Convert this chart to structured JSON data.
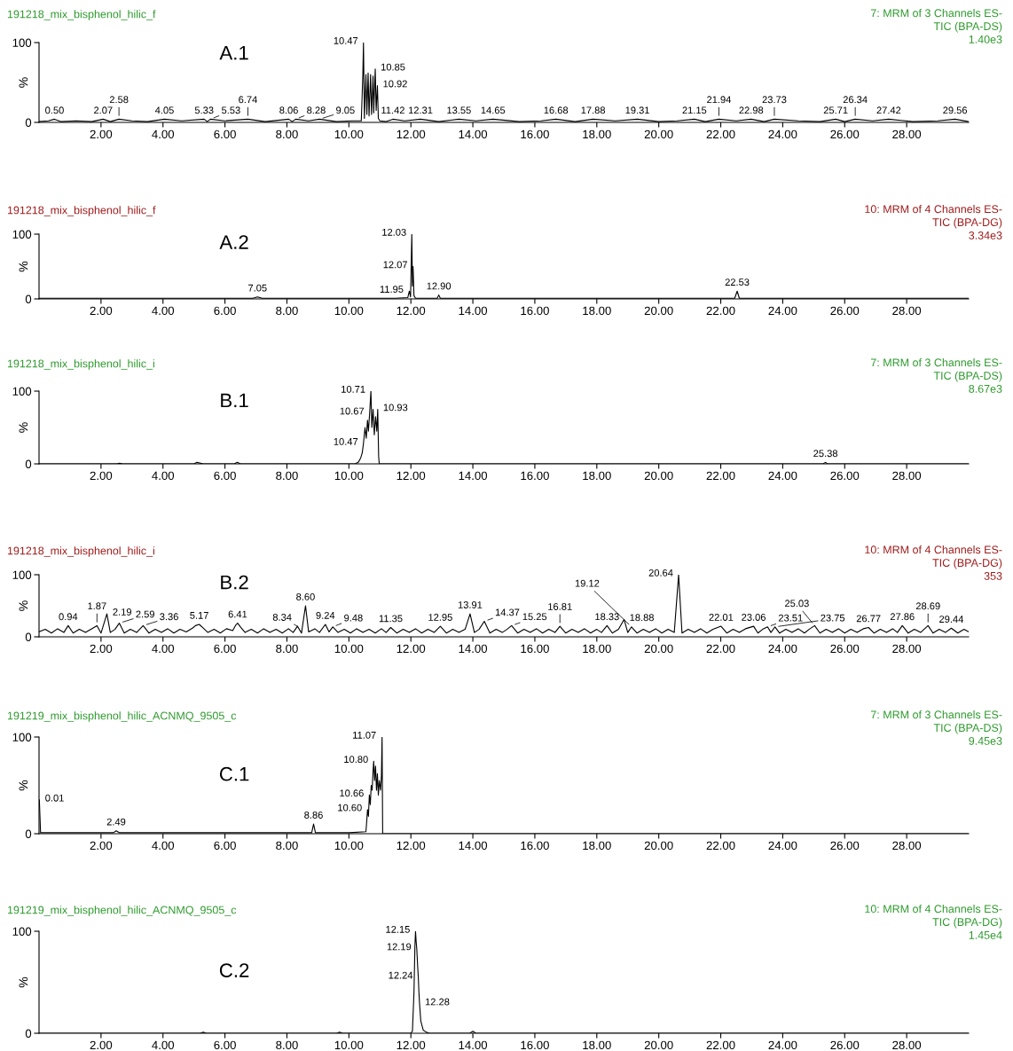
{
  "chart_data": [
    {
      "type": "line",
      "title": "191218_mix_bisphenol_hilic_f",
      "subtitle": "7: MRM of 3 Channels ES-\nTIC (BPA-DS)\n1.40e3",
      "color": "#2e9a2e",
      "ylabel": "%",
      "xlim": [
        0,
        30
      ],
      "ylim": [
        0,
        100
      ],
      "yticks": [
        0,
        100
      ],
      "xticks": [
        {
          "value": 2,
          "label": "2.00"
        },
        {
          "value": 4,
          "label": "4.00"
        },
        {
          "value": 6,
          "label": "6.00"
        },
        {
          "value": 8,
          "label": "8.00"
        },
        {
          "value": 10,
          "label": "10.00"
        },
        {
          "value": 12,
          "label": "12.00"
        },
        {
          "value": 14,
          "label": "14.00"
        },
        {
          "value": 16,
          "label": "16.00"
        },
        {
          "value": 18,
          "label": "18.00"
        },
        {
          "value": 20,
          "label": "20.00"
        },
        {
          "value": 22,
          "label": "22.00"
        },
        {
          "value": 24,
          "label": "24.00"
        },
        {
          "value": 26,
          "label": "26.00"
        },
        {
          "value": 28,
          "label": "28.00"
        }
      ],
      "series": [
        {
          "color": "#000000",
          "x": [
            0,
            0.3,
            0.5,
            0.7,
            1.2,
            1.7,
            2.07,
            2.3,
            2.58,
            3.0,
            3.5,
            4.05,
            4.6,
            5.33,
            5.43,
            5.53,
            6.0,
            6.74,
            7.3,
            8.06,
            8.17,
            8.28,
            8.7,
            9.05,
            9.6,
            10.1,
            10.4,
            10.45,
            10.47,
            10.5,
            10.55,
            10.58,
            10.62,
            10.65,
            10.7,
            10.73,
            10.78,
            10.8,
            10.85,
            10.88,
            10.92,
            10.95,
            11.0,
            11.2,
            11.42,
            11.8,
            12.31,
            12.9,
            13.55,
            14.1,
            14.65,
            15.5,
            16.2,
            16.68,
            17.3,
            17.88,
            18.6,
            19.31,
            20.0,
            20.6,
            21.15,
            21.5,
            21.94,
            22.5,
            22.98,
            23.4,
            23.73,
            24.5,
            25.2,
            25.71,
            26.0,
            26.34,
            26.9,
            27.42,
            28.2,
            29.0,
            29.56,
            30
          ],
          "values": [
            1,
            2,
            4,
            1,
            2,
            1,
            4,
            1,
            4,
            2,
            1,
            4,
            2,
            4,
            1,
            4,
            2,
            4,
            1,
            4,
            1,
            4,
            2,
            4,
            1,
            2,
            2,
            60,
            100,
            5,
            60,
            10,
            62,
            8,
            60,
            10,
            58,
            12,
            67,
            15,
            46,
            5,
            2,
            1,
            4,
            2,
            4,
            1,
            4,
            2,
            4,
            1,
            2,
            4,
            1,
            4,
            2,
            4,
            1,
            2,
            4,
            1,
            4,
            2,
            4,
            1,
            4,
            2,
            1,
            4,
            1,
            4,
            2,
            4,
            1,
            2,
            4,
            1
          ]
        }
      ],
      "annotations": [
        "A.1",
        {
          "text": "0.50",
          "x": 0.5,
          "y": 4
        },
        {
          "text": "2.07",
          "x": 2.07,
          "y": 4
        },
        {
          "text": "2.58",
          "x": 2.58,
          "y": 4
        },
        {
          "text": "4.05",
          "x": 4.05,
          "y": 4
        },
        {
          "text": "5.33",
          "x": 5.33,
          "y": 4
        },
        {
          "text": "5.53",
          "x": 5.53,
          "y": 4
        },
        {
          "text": "6.74",
          "x": 6.74,
          "y": 4
        },
        {
          "text": "8.06",
          "x": 8.06,
          "y": 4
        },
        {
          "text": "8.28",
          "x": 8.28,
          "y": 4
        },
        {
          "text": "9.05",
          "x": 9.05,
          "y": 4
        },
        {
          "text": "10.47",
          "x": 10.47,
          "y": 100
        },
        {
          "text": "10.85",
          "x": 10.85,
          "y": 67
        },
        {
          "text": "10.92",
          "x": 10.92,
          "y": 46
        },
        {
          "text": "11.42",
          "x": 11.42,
          "y": 4
        },
        {
          "text": "12.31",
          "x": 12.31,
          "y": 4
        },
        {
          "text": "13.55",
          "x": 13.55,
          "y": 4
        },
        {
          "text": "14.65",
          "x": 14.65,
          "y": 4
        },
        {
          "text": "16.68",
          "x": 16.68,
          "y": 4
        },
        {
          "text": "17.88",
          "x": 17.88,
          "y": 4
        },
        {
          "text": "19.31",
          "x": 19.31,
          "y": 4
        },
        {
          "text": "21.15",
          "x": 21.15,
          "y": 4
        },
        {
          "text": "21.94",
          "x": 21.94,
          "y": 4
        },
        {
          "text": "22.98",
          "x": 22.98,
          "y": 4
        },
        {
          "text": "23.73",
          "x": 23.73,
          "y": 4
        },
        {
          "text": "25.71",
          "x": 25.71,
          "y": 4
        },
        {
          "text": "26.34",
          "x": 26.34,
          "y": 4
        },
        {
          "text": "27.42",
          "x": 27.42,
          "y": 4
        },
        {
          "text": "29.56",
          "x": 29.56,
          "y": 4
        }
      ]
    },
    {
      "type": "line",
      "title": "191218_mix_bisphenol_hilic_f",
      "subtitle": "10: MRM of 4 Channels ES-\nTIC (BPA-DG)\n3.34e3",
      "color": "#a01c1c",
      "ylabel": "%",
      "xlim": [
        0,
        30
      ],
      "ylim": [
        0,
        100
      ],
      "yticks": [
        0,
        100
      ],
      "xticks": [
        {
          "value": 2,
          "label": "2.00"
        },
        {
          "value": 4,
          "label": "4.00"
        },
        {
          "value": 6,
          "label": "6.00"
        },
        {
          "value": 8,
          "label": "8.00"
        },
        {
          "value": 10,
          "label": "10.00"
        },
        {
          "value": 12,
          "label": "12.00"
        },
        {
          "value": 14,
          "label": "14.00"
        },
        {
          "value": 16,
          "label": "16.00"
        },
        {
          "value": 18,
          "label": "18.00"
        },
        {
          "value": 20,
          "label": "20.00"
        },
        {
          "value": 22,
          "label": "22.00"
        },
        {
          "value": 24,
          "label": "24.00"
        },
        {
          "value": 26,
          "label": "26.00"
        },
        {
          "value": 28,
          "label": "28.00"
        }
      ],
      "series": [
        {
          "color": "#000000",
          "x": [
            0,
            1.5,
            3.0,
            4.5,
            6.0,
            6.9,
            7.05,
            7.2,
            8.5,
            10.0,
            11.5,
            11.9,
            11.95,
            11.99,
            12.03,
            12.05,
            12.07,
            12.1,
            12.15,
            12.5,
            12.85,
            12.9,
            12.95,
            14.5,
            16.0,
            17.5,
            19.0,
            20.5,
            22.0,
            22.45,
            22.53,
            22.6,
            24.0,
            25.5,
            27.0,
            28.5,
            30
          ],
          "values": [
            1,
            1,
            1,
            1,
            1,
            1,
            3,
            1,
            1,
            1,
            1,
            2,
            12,
            3,
            100,
            20,
            50,
            5,
            1,
            1,
            1,
            6,
            1,
            1,
            1,
            1,
            1,
            1,
            1,
            1,
            12,
            1,
            1,
            1,
            1,
            1,
            1
          ]
        }
      ],
      "annotations": [
        "A.2",
        {
          "text": "7.05",
          "x": 7.05,
          "y": 3
        },
        {
          "text": "11.95",
          "x": 11.95,
          "y": 12
        },
        {
          "text": "12.03",
          "x": 12.03,
          "y": 100
        },
        {
          "text": "12.07",
          "x": 12.07,
          "y": 50
        },
        {
          "text": "12.90",
          "x": 12.9,
          "y": 6
        },
        {
          "text": "22.53",
          "x": 22.53,
          "y": 12
        }
      ]
    },
    {
      "type": "line",
      "title": "191218_mix_bisphenol_hilic_i",
      "subtitle": "7: MRM of 3 Channels ES-\nTIC (BPA-DS)\n8.67e3",
      "color": "#2e9a2e",
      "ylabel": "%",
      "xlim": [
        0,
        30
      ],
      "ylim": [
        0,
        100
      ],
      "yticks": [
        0,
        100
      ],
      "xticks": [
        {
          "value": 2,
          "label": "2.00"
        },
        {
          "value": 4,
          "label": "4.00"
        },
        {
          "value": 6,
          "label": "6.00"
        },
        {
          "value": 8,
          "label": "8.00"
        },
        {
          "value": 10,
          "label": "10.00"
        },
        {
          "value": 12,
          "label": "12.00"
        },
        {
          "value": 14,
          "label": "14.00"
        },
        {
          "value": 16,
          "label": "16.00"
        },
        {
          "value": 18,
          "label": "18.00"
        },
        {
          "value": 20,
          "label": "20.00"
        },
        {
          "value": 22,
          "label": "22.00"
        },
        {
          "value": 24,
          "label": "24.00"
        },
        {
          "value": 26,
          "label": "26.00"
        },
        {
          "value": 28,
          "label": "28.00"
        }
      ],
      "series": [
        {
          "color": "#000000",
          "x": [
            0,
            2.5,
            2.6,
            2.7,
            5.0,
            5.1,
            5.3,
            6.3,
            6.4,
            6.5,
            10.2,
            10.3,
            10.38,
            10.43,
            10.47,
            10.52,
            10.56,
            10.6,
            10.63,
            10.67,
            10.71,
            10.74,
            10.78,
            10.82,
            10.86,
            10.9,
            10.93,
            10.96,
            10.98,
            11.2,
            25.3,
            25.38,
            25.45,
            30
          ],
          "values": [
            0,
            0,
            1,
            0,
            0,
            2,
            0,
            0,
            2,
            0,
            0,
            2,
            8,
            15,
            28,
            50,
            35,
            60,
            45,
            70,
            100,
            50,
            75,
            40,
            65,
            45,
            75,
            10,
            0,
            0,
            0,
            2,
            0,
            0
          ]
        }
      ],
      "annotations": [
        "B.1",
        {
          "text": "10.47",
          "x": 10.47,
          "y": 28
        },
        {
          "text": "10.67",
          "x": 10.67,
          "y": 70
        },
        {
          "text": "10.71",
          "x": 10.71,
          "y": 100
        },
        {
          "text": "10.93",
          "x": 10.93,
          "y": 75
        },
        {
          "text": "25.38",
          "x": 25.38,
          "y": 2
        }
      ]
    },
    {
      "type": "line",
      "title": "191218_mix_bisphenol_hilic_i",
      "subtitle": "10: MRM of 4 Channels ES-\nTIC (BPA-DG)\n353",
      "color": "#a01c1c",
      "ylabel": "%",
      "xlim": [
        0,
        30
      ],
      "ylim": [
        0,
        100
      ],
      "yticks": [
        0,
        100
      ],
      "xticks": [
        {
          "value": 2,
          "label": "2.00"
        },
        {
          "value": 4,
          "label": "4.00"
        },
        {
          "value": 6,
          "label": "6.00"
        },
        {
          "value": 8,
          "label": "8.00"
        },
        {
          "value": 10,
          "label": "10.00"
        },
        {
          "value": 12,
          "label": "12.00"
        },
        {
          "value": 14,
          "label": "14.00"
        },
        {
          "value": 16,
          "label": "16.00"
        },
        {
          "value": 18,
          "label": "18.00"
        },
        {
          "value": 20,
          "label": "20.00"
        },
        {
          "value": 22,
          "label": "22.00"
        },
        {
          "value": 24,
          "label": "24.00"
        },
        {
          "value": 26,
          "label": "26.00"
        },
        {
          "value": 28,
          "label": "28.00"
        }
      ],
      "series": [
        {
          "color": "#000000",
          "x": [
            0.0,
            0.2,
            0.4,
            0.6,
            0.8,
            0.94,
            1.1,
            1.3,
            1.5,
            1.7,
            1.87,
            2.0,
            2.19,
            2.3,
            2.45,
            2.59,
            2.75,
            2.95,
            3.15,
            3.36,
            3.55,
            3.75,
            3.95,
            4.15,
            4.35,
            4.55,
            4.75,
            4.95,
            5.05,
            5.17,
            5.3,
            5.45,
            5.65,
            5.85,
            6.05,
            6.25,
            6.35,
            6.41,
            6.5,
            6.65,
            6.85,
            7.05,
            7.25,
            7.45,
            7.65,
            7.85,
            8.05,
            8.2,
            8.34,
            8.47,
            8.6,
            8.7,
            8.9,
            9.05,
            9.24,
            9.36,
            9.48,
            9.65,
            9.85,
            10.05,
            10.25,
            10.45,
            10.65,
            10.85,
            11.05,
            11.2,
            11.35,
            11.55,
            11.75,
            11.95,
            12.15,
            12.35,
            12.55,
            12.75,
            12.95,
            13.15,
            13.35,
            13.55,
            13.75,
            13.91,
            14.05,
            14.2,
            14.37,
            14.55,
            14.75,
            14.95,
            15.1,
            15.25,
            15.45,
            15.65,
            15.85,
            16.05,
            16.25,
            16.45,
            16.65,
            16.81,
            17.0,
            17.2,
            17.4,
            17.6,
            17.8,
            18.0,
            18.15,
            18.33,
            18.5,
            18.7,
            18.88,
            19.0,
            19.12,
            19.3,
            19.5,
            19.7,
            19.9,
            20.1,
            20.3,
            20.5,
            20.64,
            20.75,
            20.95,
            21.15,
            21.35,
            21.55,
            21.75,
            22.01,
            22.2,
            22.4,
            22.6,
            22.8,
            23.06,
            23.2,
            23.35,
            23.51,
            23.62,
            23.75,
            23.9,
            24.1,
            24.3,
            24.5,
            24.7,
            24.85,
            25.03,
            25.2,
            25.4,
            25.6,
            25.8,
            26.0,
            26.2,
            26.4,
            26.6,
            26.77,
            26.95,
            27.15,
            27.35,
            27.55,
            27.7,
            27.86,
            28.05,
            28.25,
            28.45,
            28.69,
            28.85,
            29.05,
            29.25,
            29.44,
            29.65,
            29.85,
            30.0
          ],
          "values": [
            8,
            12,
            6,
            13,
            7,
            18,
            6,
            12,
            7,
            13,
            18,
            6,
            37,
            7,
            12,
            22,
            6,
            12,
            7,
            18,
            6,
            12,
            7,
            13,
            6,
            12,
            8,
            14,
            18,
            20,
            14,
            7,
            12,
            6,
            13,
            10,
            19,
            22,
            16,
            7,
            12,
            6,
            13,
            7,
            12,
            6,
            13,
            7,
            17,
            6,
            50,
            8,
            13,
            7,
            20,
            8,
            16,
            7,
            12,
            6,
            13,
            7,
            12,
            6,
            13,
            7,
            15,
            6,
            12,
            7,
            13,
            6,
            12,
            7,
            17,
            6,
            12,
            7,
            12,
            37,
            7,
            12,
            25,
            6,
            12,
            7,
            12,
            18,
            6,
            12,
            7,
            13,
            6,
            12,
            7,
            17,
            6,
            12,
            7,
            13,
            6,
            12,
            7,
            18,
            6,
            12,
            28,
            7,
            16,
            6,
            12,
            7,
            13,
            6,
            12,
            7,
            100,
            6,
            12,
            7,
            13,
            6,
            12,
            17,
            6,
            12,
            7,
            13,
            17,
            6,
            12,
            16,
            7,
            16,
            6,
            12,
            7,
            13,
            6,
            12,
            18,
            6,
            12,
            7,
            13,
            6,
            12,
            7,
            13,
            15,
            6,
            12,
            7,
            13,
            7,
            18,
            6,
            12,
            7,
            18,
            6,
            12,
            7,
            14,
            6,
            12,
            8
          ]
        }
      ],
      "annotations": [
        "B.2",
        {
          "text": "0.94",
          "x": 0.94,
          "y": 18
        },
        {
          "text": "1.87",
          "x": 1.87,
          "y": 18
        },
        {
          "text": "2.19",
          "x": 2.19,
          "y": 37
        },
        {
          "text": "2.59",
          "x": 2.59,
          "y": 22
        },
        {
          "text": "3.36",
          "x": 3.36,
          "y": 18
        },
        {
          "text": "5.17",
          "x": 5.17,
          "y": 20
        },
        {
          "text": "6.41",
          "x": 6.41,
          "y": 22
        },
        {
          "text": "8.34",
          "x": 8.34,
          "y": 17
        },
        {
          "text": "8.60",
          "x": 8.6,
          "y": 50
        },
        {
          "text": "9.24",
          "x": 9.24,
          "y": 20
        },
        {
          "text": "9.48",
          "x": 9.48,
          "y": 16
        },
        {
          "text": "11.35",
          "x": 11.35,
          "y": 15
        },
        {
          "text": "12.95",
          "x": 12.95,
          "y": 17
        },
        {
          "text": "13.91",
          "x": 13.91,
          "y": 37
        },
        {
          "text": "14.37",
          "x": 14.37,
          "y": 25
        },
        {
          "text": "15.25",
          "x": 15.25,
          "y": 18
        },
        {
          "text": "16.81",
          "x": 16.81,
          "y": 17
        },
        {
          "text": "18.33",
          "x": 18.33,
          "y": 18
        },
        {
          "text": "18.88",
          "x": 18.88,
          "y": 28
        },
        {
          "text": "19.12",
          "x": 19.12,
          "y": 16
        },
        {
          "text": "20.64",
          "x": 20.64,
          "y": 100
        },
        {
          "text": "22.01",
          "x": 22.01,
          "y": 17
        },
        {
          "text": "23.06",
          "x": 23.06,
          "y": 17
        },
        {
          "text": "23.51",
          "x": 23.51,
          "y": 16
        },
        {
          "text": "23.75",
          "x": 23.75,
          "y": 16
        },
        {
          "text": "25.03",
          "x": 25.03,
          "y": 18
        },
        {
          "text": "26.77",
          "x": 26.77,
          "y": 15
        },
        {
          "text": "27.86",
          "x": 27.86,
          "y": 18
        },
        {
          "text": "28.69",
          "x": 28.69,
          "y": 18
        },
        {
          "text": "29.44",
          "x": 29.44,
          "y": 14
        }
      ]
    },
    {
      "type": "line",
      "title": "191219_mix_bisphenol_hilic_ACNMQ_9505_c",
      "subtitle": "7: MRM of 3 Channels ES-\nTIC (BPA-DS)\n9.45e3",
      "color": "#2e9a2e",
      "ylabel": "%",
      "xlim": [
        0,
        30
      ],
      "ylim": [
        0,
        100
      ],
      "yticks": [
        0,
        100
      ],
      "xticks": [
        {
          "value": 2,
          "label": "2.00"
        },
        {
          "value": 4,
          "label": "4.00"
        },
        {
          "value": 6,
          "label": "6.00"
        },
        {
          "value": 8,
          "label": "8.00"
        },
        {
          "value": 10,
          "label": "10.00"
        },
        {
          "value": 12,
          "label": "12.00"
        },
        {
          "value": 14,
          "label": "14.00"
        },
        {
          "value": 16,
          "label": "16.00"
        },
        {
          "value": 18,
          "label": "18.00"
        },
        {
          "value": 20,
          "label": "20.00"
        },
        {
          "value": 22,
          "label": "22.00"
        },
        {
          "value": 24,
          "label": "24.00"
        },
        {
          "value": 26,
          "label": "26.00"
        },
        {
          "value": 28,
          "label": "28.00"
        }
      ],
      "series": [
        {
          "color": "#000000",
          "x": [
            0.01,
            0.05,
            1.0,
            2.4,
            2.49,
            2.6,
            5.0,
            7.0,
            8.8,
            8.86,
            8.92,
            10.0,
            10.55,
            10.58,
            10.6,
            10.63,
            10.66,
            10.69,
            10.72,
            10.75,
            10.78,
            10.8,
            10.83,
            10.86,
            10.89,
            10.92,
            10.95,
            10.98,
            11.02,
            11.05,
            11.07,
            11.09,
            12.0,
            16.0,
            20.0,
            25.0,
            30
          ],
          "values": [
            35,
            1,
            1,
            1,
            3,
            1,
            1,
            1,
            1,
            10,
            1,
            1,
            2,
            15,
            25,
            18,
            40,
            30,
            50,
            45,
            65,
            75,
            55,
            70,
            45,
            62,
            40,
            55,
            45,
            60,
            100,
            0,
            0,
            0,
            0,
            0,
            0
          ]
        }
      ],
      "annotations": [
        "C.1",
        {
          "text": "0.01",
          "x": 0.01,
          "y": 35
        },
        {
          "text": "2.49",
          "x": 2.49,
          "y": 3
        },
        {
          "text": "8.86",
          "x": 8.86,
          "y": 10
        },
        {
          "text": "10.60",
          "x": 10.6,
          "y": 25
        },
        {
          "text": "10.66",
          "x": 10.66,
          "y": 40
        },
        {
          "text": "10.80",
          "x": 10.8,
          "y": 75
        },
        {
          "text": "11.07",
          "x": 11.07,
          "y": 100
        }
      ]
    },
    {
      "type": "line",
      "title": "191219_mix_bisphenol_hilic_ACNMQ_9505_c",
      "subtitle": "10: MRM of 4 Channels ES-\nTIC (BPA-DG)\n1.45e4",
      "color": "#2e9a2e",
      "ylabel": "%",
      "xlim": [
        0,
        30
      ],
      "ylim": [
        0,
        100
      ],
      "yticks": [
        0,
        100
      ],
      "xticks": [
        {
          "value": 2,
          "label": "2.00"
        },
        {
          "value": 4,
          "label": "4.00"
        },
        {
          "value": 6,
          "label": "6.00"
        },
        {
          "value": 8,
          "label": "8.00"
        },
        {
          "value": 10,
          "label": "10.00"
        },
        {
          "value": 12,
          "label": "12.00"
        },
        {
          "value": 14,
          "label": "14.00"
        },
        {
          "value": 16,
          "label": "16.00"
        },
        {
          "value": 18,
          "label": "18.00"
        },
        {
          "value": 20,
          "label": "20.00"
        },
        {
          "value": 22,
          "label": "22.00"
        },
        {
          "value": 24,
          "label": "24.00"
        },
        {
          "value": 26,
          "label": "26.00"
        },
        {
          "value": 28,
          "label": "28.00"
        }
      ],
      "series": [
        {
          "color": "#000000",
          "x": [
            0,
            5.2,
            5.3,
            5.4,
            9.6,
            9.7,
            9.8,
            12.0,
            12.05,
            12.1,
            12.13,
            12.15,
            12.17,
            12.19,
            12.22,
            12.24,
            12.26,
            12.28,
            12.32,
            12.4,
            12.5,
            12.6,
            13.9,
            14.0,
            14.1,
            30
          ],
          "values": [
            0,
            0,
            1,
            0,
            0,
            1,
            0,
            0,
            2,
            40,
            85,
            100,
            90,
            83,
            65,
            55,
            40,
            29,
            12,
            3,
            1,
            0,
            0,
            2,
            0,
            0
          ]
        }
      ],
      "annotations": [
        "C.2",
        {
          "text": "12.15",
          "x": 12.15,
          "y": 100
        },
        {
          "text": "12.19",
          "x": 12.19,
          "y": 83
        },
        {
          "text": "12.24",
          "x": 12.24,
          "y": 55
        },
        {
          "text": "12.28",
          "x": 12.28,
          "y": 29
        }
      ]
    }
  ]
}
